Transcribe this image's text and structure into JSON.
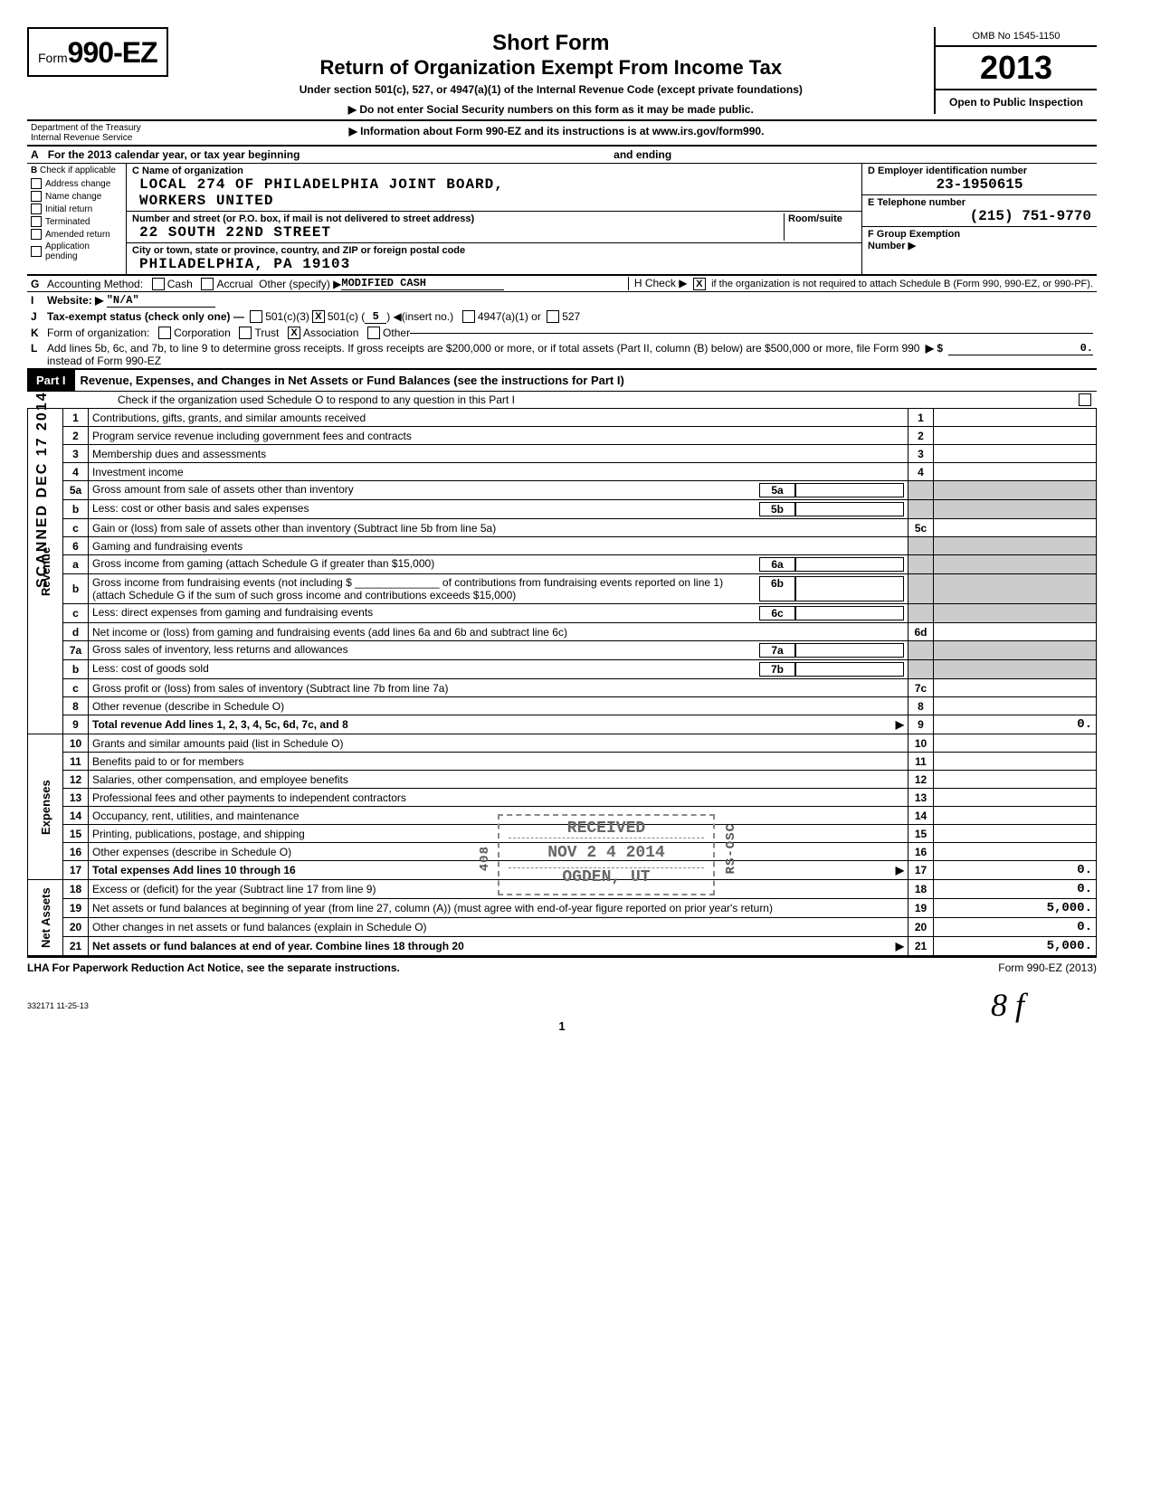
{
  "vertical_stamp": "SCANNED  DEC 17 2014",
  "header": {
    "form_word": "Form",
    "form_no": "990-EZ",
    "title1": "Short Form",
    "title2": "Return of Organization Exempt From Income Tax",
    "subtitle": "Under section 501(c), 527, or 4947(a)(1) of the Internal Revenue Code (except private foundations)",
    "arrow1": "▶ Do not enter Social Security numbers on this form as it may be made public.",
    "arrow2": "▶ Information about Form 990-EZ and its instructions is at www.irs.gov/form990.",
    "omb": "OMB No  1545-1150",
    "year": "2013",
    "open": "Open to Public Inspection",
    "dept1": "Department of the Treasury",
    "dept2": "Internal Revenue Service"
  },
  "A": {
    "text": "For the 2013 calendar year, or tax year beginning",
    "ending": "and ending"
  },
  "B": {
    "hdr": "Check if applicable",
    "items": [
      "Address change",
      "Name change",
      "Initial return",
      "Terminated",
      "Amended return",
      "Application pending"
    ]
  },
  "C": {
    "label": "C  Name of organization",
    "name1": "LOCAL 274 OF PHILADELPHIA JOINT BOARD,",
    "name2": "WORKERS UNITED",
    "street_lbl": "Number and street (or P.O. box, if mail is not delivered to street address)",
    "room_lbl": "Room/suite",
    "street": "22 SOUTH 22ND STREET",
    "city_lbl": "City or town, state or province, country, and ZIP or foreign postal code",
    "city": "PHILADELPHIA, PA   19103"
  },
  "D": {
    "label": "D Employer identification number",
    "val": "23-1950615"
  },
  "E": {
    "label": "E  Telephone number",
    "val": "(215) 751-9770"
  },
  "F": {
    "label": "F  Group Exemption",
    "label2": "Number ▶"
  },
  "G": {
    "lbl": "G",
    "text": "Accounting Method:",
    "cash": "Cash",
    "accrual": "Accrual",
    "other": "Other (specify) ▶",
    "val": "MODIFIED CASH"
  },
  "H": {
    "text": "H Check ▶",
    "tail": "if the organization is not required to attach Schedule B (Form 990, 990-EZ, or 990-PF)."
  },
  "I": {
    "lbl": "I",
    "text": "Website: ▶",
    "val": "\"N/A\""
  },
  "J": {
    "lbl": "J",
    "text": "Tax-exempt status (check only one)  —",
    "c3": "501(c)(3)",
    "c": "501(c) (",
    "cnum": "5",
    "insert": ") ◀(insert no.)",
    "a1": "4947(a)(1) or",
    "527": "527"
  },
  "K": {
    "lbl": "K",
    "text": "Form of organization:",
    "opts": [
      "Corporation",
      "Trust",
      "Association",
      "Other"
    ],
    "checked": 2
  },
  "L": {
    "lbl": "L",
    "text": "Add lines 5b, 6c, and 7b, to line 9 to determine gross receipts. If gross receipts are $200,000 or more, or if total assets (Part II, column (B) below) are $500,000 or more, file Form 990 instead of Form 990-EZ",
    "arrow": "▶   $",
    "val": "0."
  },
  "part1": {
    "tab": "Part I",
    "title": "Revenue, Expenses, and Changes in Net Assets or Fund Balances (see the instructions for Part I)",
    "sub": "Check if the organization used Schedule O to respond to any question in this Part I"
  },
  "sections": {
    "revenue": "Revenue",
    "expenses": "Expenses",
    "net": "Net Assets"
  },
  "rows": [
    {
      "n": "1",
      "d": "Contributions, gifts, grants, and similar amounts received",
      "r": "1"
    },
    {
      "n": "2",
      "d": "Program service revenue including government fees and contracts",
      "r": "2"
    },
    {
      "n": "3",
      "d": "Membership dues and assessments",
      "r": "3"
    },
    {
      "n": "4",
      "d": "Investment income",
      "r": "4"
    },
    {
      "n": "5a",
      "d": "Gross amount from sale of assets other than inventory",
      "i": "5a"
    },
    {
      "n": "b",
      "d": "Less: cost or other basis and sales expenses",
      "i": "5b"
    },
    {
      "n": "c",
      "d": "Gain or (loss) from sale of assets other than inventory (Subtract line 5b from line 5a)",
      "r": "5c"
    },
    {
      "n": "6",
      "d": "Gaming and fundraising events"
    },
    {
      "n": "a",
      "d": "Gross income from gaming (attach Schedule G if greater than $15,000)",
      "i": "6a"
    },
    {
      "n": "b",
      "d": "Gross income from fundraising events (not including $ ______________ of contributions from fundraising events reported on line 1) (attach Schedule G if the sum of such gross income and contributions exceeds $15,000)",
      "i": "6b"
    },
    {
      "n": "c",
      "d": "Less: direct expenses from gaming and fundraising events",
      "i": "6c"
    },
    {
      "n": "d",
      "d": "Net income or (loss) from gaming and fundraising events (add lines 6a and 6b and subtract line 6c)",
      "r": "6d"
    },
    {
      "n": "7a",
      "d": "Gross sales of inventory, less returns and allowances",
      "i": "7a"
    },
    {
      "n": "b",
      "d": "Less: cost of goods sold",
      "i": "7b"
    },
    {
      "n": "c",
      "d": "Gross profit or (loss) from sales of inventory (Subtract line 7b from line 7a)",
      "r": "7c"
    },
    {
      "n": "8",
      "d": "Other revenue (describe in Schedule O)",
      "r": "8"
    },
    {
      "n": "9",
      "d": "Total revenue  Add lines 1, 2, 3, 4, 5c, 6d, 7c, and 8",
      "r": "9",
      "arrow": true,
      "amt": "0."
    },
    {
      "n": "10",
      "d": "Grants and similar amounts paid (list in Schedule O)",
      "r": "10"
    },
    {
      "n": "11",
      "d": "Benefits paid to or for members",
      "r": "11"
    },
    {
      "n": "12",
      "d": "Salaries, other compensation, and employee benefits",
      "r": "12"
    },
    {
      "n": "13",
      "d": "Professional fees and other payments to independent contractors",
      "r": "13"
    },
    {
      "n": "14",
      "d": "Occupancy, rent, utilities, and maintenance",
      "r": "14"
    },
    {
      "n": "15",
      "d": "Printing, publications, postage, and shipping",
      "r": "15"
    },
    {
      "n": "16",
      "d": "Other expenses (describe in Schedule O)",
      "r": "16"
    },
    {
      "n": "17",
      "d": "Total expenses  Add lines 10 through 16",
      "r": "17",
      "arrow": true,
      "amt": "0."
    },
    {
      "n": "18",
      "d": "Excess or (deficit) for the year (Subtract line 17 from line 9)",
      "r": "18",
      "amt": "0."
    },
    {
      "n": "19",
      "d": "Net assets or fund balances at beginning of year (from line 27, column (A)) (must agree with end-of-year figure reported on prior year's return)",
      "r": "19",
      "amt": "5,000."
    },
    {
      "n": "20",
      "d": "Other changes in net assets or fund balances (explain in Schedule O)",
      "r": "20",
      "amt": "0."
    },
    {
      "n": "21",
      "d": "Net assets or fund balances at end of year. Combine lines 18 through 20",
      "r": "21",
      "arrow": true,
      "amt": "5,000."
    }
  ],
  "stamps": {
    "received": "RECEIVED",
    "date": "NOV 2 4 2014",
    "ogden": "OGDEN, UT",
    "side": "RS-OSC",
    "code": "408"
  },
  "footer": {
    "lha": "LHA  For Paperwork Reduction Act Notice, see the separate instructions.",
    "formno": "Form 990-EZ (2013)",
    "code": "332171\n11-25-13",
    "page": "1"
  },
  "sig": "8 f"
}
